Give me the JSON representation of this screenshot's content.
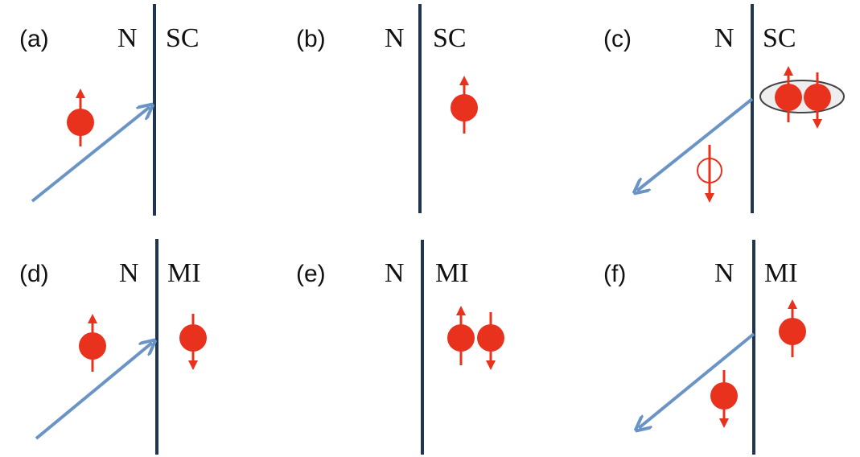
{
  "panels": [
    {
      "label": "(a)",
      "left": "N",
      "right": "SC"
    },
    {
      "label": "(b)",
      "left": "N",
      "right": "SC"
    },
    {
      "label": "(c)",
      "left": "N",
      "right": "SC"
    },
    {
      "label": "(d)",
      "left": "N",
      "right": "MI"
    },
    {
      "label": "(e)",
      "left": "N",
      "right": "MI"
    },
    {
      "label": "(f)",
      "left": "N",
      "right": "MI"
    }
  ]
}
